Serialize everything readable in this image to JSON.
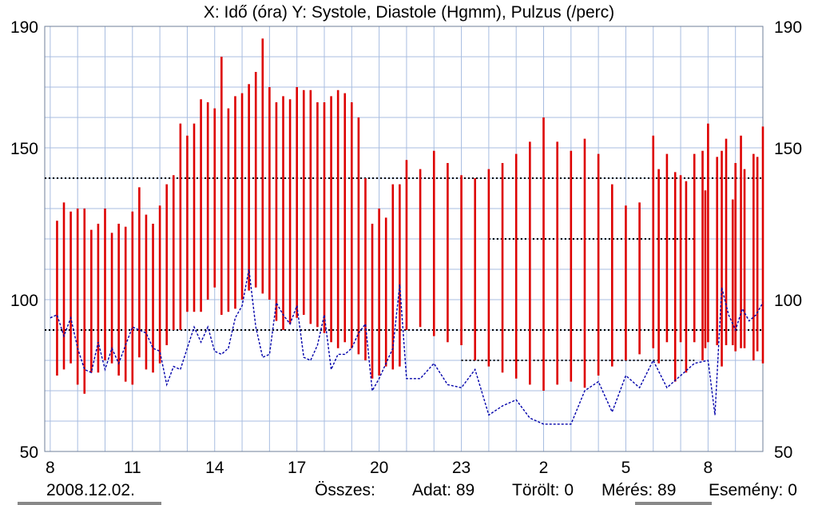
{
  "header": {
    "title": "X: Idő (óra)  Y: Systole, Diastole (Hgmm), Pulzus (/perc)"
  },
  "footer": {
    "date": "2008.12.02.",
    "total_label": "Összes:",
    "data_label": "Adat: 89",
    "deleted_label": "Törölt: 0",
    "measure_label": "Mérés: 89",
    "event_label": "Esemény: 0"
  },
  "colors": {
    "bars": "#dd0000",
    "pulse": "#0000aa",
    "grid": "#a8bde0",
    "thresholds": "#000000"
  },
  "chart_data": {
    "type": "bar",
    "title": "X: Idő (óra)  Y: Systole, Diastole (Hgmm), Pulzus (/perc)",
    "xlabel": "Idő (óra)",
    "ylabel": "Systole, Diastole (Hgmm), Pulzus (/perc)",
    "x_unit": "hours since 8:00 on 2008.12.02",
    "xlim": [
      -0.2,
      26
    ],
    "ylim": [
      50,
      190
    ],
    "x_ticks": [
      0,
      3,
      6,
      9,
      12,
      15,
      18,
      21,
      24
    ],
    "x_tick_labels": [
      "8",
      "11",
      "14",
      "17",
      "20",
      "23",
      "2",
      "5",
      "8"
    ],
    "y_ticks": [
      50,
      100,
      150,
      190
    ],
    "y_tick_labels": [
      "50",
      "100",
      "150",
      "190"
    ],
    "y_axis_both_sides": true,
    "grid": true,
    "series": [
      {
        "name": "Systole",
        "type": "bar-high",
        "color": "#dd0000",
        "x": [
          0.25,
          0.5,
          0.75,
          1.0,
          1.25,
          1.5,
          1.75,
          2.0,
          2.25,
          2.5,
          2.75,
          3.0,
          3.25,
          3.5,
          3.75,
          4.0,
          4.25,
          4.5,
          4.75,
          5.0,
          5.25,
          5.5,
          5.75,
          6.0,
          6.25,
          6.5,
          6.75,
          7.0,
          7.25,
          7.5,
          7.75,
          8.0,
          8.25,
          8.5,
          8.75,
          9.0,
          9.25,
          9.5,
          9.75,
          10.0,
          10.25,
          10.5,
          10.75,
          11.0,
          11.25,
          11.5,
          11.75,
          12.0,
          12.25,
          12.5,
          12.75,
          13.0,
          13.5,
          14.0,
          14.5,
          15.0,
          15.5,
          16.0,
          16.5,
          17.0,
          17.5,
          18.0,
          18.5,
          19.0,
          19.5,
          20.0,
          20.5,
          21.0,
          21.5,
          22.0,
          22.5,
          23.0,
          23.5,
          24.0,
          24.33,
          24.66,
          25.0,
          25.33,
          25.66,
          26.0,
          24.5,
          25.2,
          25.8,
          23.9,
          24.9,
          22.2,
          22.8,
          23.2,
          23.8
        ],
        "values": [
          126,
          132,
          129,
          130,
          130,
          123,
          125,
          130,
          122,
          125,
          124,
          129,
          137,
          128,
          125,
          131,
          138,
          141,
          158,
          154,
          158,
          166,
          165,
          163,
          180,
          163,
          167,
          168,
          171,
          175,
          186,
          170,
          165,
          167,
          166,
          170,
          169,
          169,
          165,
          165,
          167,
          169,
          168,
          165,
          160,
          140,
          125,
          130,
          127,
          138,
          138,
          146,
          143,
          149,
          145,
          141,
          140,
          143,
          145,
          148,
          152,
          160,
          152,
          149,
          153,
          148,
          138,
          131,
          132,
          154,
          148,
          141,
          148,
          158,
          147,
          153,
          145,
          143,
          148,
          157,
          149,
          154,
          147,
          136,
          133,
          143,
          142,
          139,
          149
        ]
      },
      {
        "name": "Diastole",
        "type": "bar-low",
        "color": "#dd0000",
        "x": [
          0.25,
          0.5,
          0.75,
          1.0,
          1.25,
          1.5,
          1.75,
          2.0,
          2.25,
          2.5,
          2.75,
          3.0,
          3.25,
          3.5,
          3.75,
          4.0,
          4.25,
          4.5,
          4.75,
          5.0,
          5.25,
          5.5,
          5.75,
          6.0,
          6.25,
          6.5,
          6.75,
          7.0,
          7.25,
          7.5,
          7.75,
          8.0,
          8.25,
          8.5,
          8.75,
          9.0,
          9.25,
          9.5,
          9.75,
          10.0,
          10.25,
          10.5,
          10.75,
          11.0,
          11.25,
          11.5,
          11.75,
          12.0,
          12.25,
          12.5,
          12.75,
          13.0,
          13.5,
          14.0,
          14.5,
          15.0,
          15.5,
          16.0,
          16.5,
          17.0,
          17.5,
          18.0,
          18.5,
          19.0,
          19.5,
          20.0,
          20.5,
          21.0,
          21.5,
          22.0,
          22.5,
          23.0,
          23.5,
          24.0,
          24.33,
          24.66,
          25.0,
          25.33,
          25.66,
          26.0,
          24.5,
          25.2,
          25.8,
          23.9,
          24.9,
          22.2,
          22.8,
          23.2,
          23.8
        ],
        "values": [
          75,
          77,
          79,
          72,
          69,
          76,
          76,
          80,
          79,
          75,
          73,
          72,
          81,
          77,
          76,
          79,
          85,
          90,
          90,
          96,
          96,
          96,
          100,
          104,
          95,
          96,
          97,
          100,
          103,
          104,
          102,
          100,
          93,
          90,
          92,
          94,
          95,
          92,
          91,
          89,
          86,
          84,
          86,
          84,
          82,
          80,
          74,
          75,
          78,
          77,
          78,
          90,
          91,
          88,
          86,
          85,
          80,
          78,
          76,
          74,
          72,
          70,
          72,
          73,
          71,
          75,
          78,
          80,
          82,
          84,
          86,
          86,
          86,
          86,
          85,
          85,
          83,
          84,
          80,
          79,
          78,
          84,
          83,
          84,
          85,
          79,
          73,
          76,
          80
        ]
      },
      {
        "name": "Pulzus",
        "type": "line",
        "color": "#0000aa",
        "x": [
          0.0,
          0.25,
          0.5,
          0.75,
          1.0,
          1.25,
          1.5,
          1.75,
          2.0,
          2.25,
          2.5,
          2.75,
          3.0,
          3.25,
          3.5,
          3.75,
          4.0,
          4.25,
          4.5,
          4.75,
          5.0,
          5.25,
          5.5,
          5.75,
          6.0,
          6.25,
          6.5,
          6.75,
          7.0,
          7.25,
          7.5,
          7.75,
          8.0,
          8.25,
          8.5,
          8.75,
          9.0,
          9.25,
          9.5,
          9.75,
          10.0,
          10.25,
          10.5,
          10.75,
          11.0,
          11.25,
          11.5,
          11.75,
          12.0,
          12.25,
          12.5,
          12.75,
          13.0,
          13.5,
          14.0,
          14.5,
          15.0,
          15.5,
          16.0,
          16.5,
          17.0,
          17.5,
          18.0,
          18.5,
          19.0,
          19.5,
          20.0,
          20.5,
          21.0,
          21.5,
          22.0,
          22.5,
          23.0,
          23.5,
          24.0,
          24.25,
          24.5,
          24.75,
          25.0,
          25.25,
          25.5,
          25.75,
          26.0
        ],
        "values": [
          94,
          95,
          88,
          94,
          84,
          77,
          76,
          86,
          77,
          84,
          79,
          85,
          91,
          90,
          89,
          84,
          83,
          72,
          78,
          77,
          84,
          91,
          86,
          91,
          83,
          82,
          84,
          94,
          98,
          110,
          91,
          81,
          82,
          99,
          95,
          92,
          98,
          81,
          80,
          85,
          95,
          77,
          82,
          82,
          84,
          89,
          92,
          70,
          74,
          79,
          84,
          105,
          74,
          74,
          79,
          72,
          71,
          77,
          62,
          65,
          67,
          61,
          59,
          59,
          59,
          70,
          73,
          63,
          75,
          71,
          80,
          71,
          75,
          79,
          80,
          62,
          104,
          95,
          90,
          97,
          93,
          95,
          99
        ]
      }
    ],
    "reference_lines": [
      {
        "y": 140,
        "x_range": [
          -0.2,
          26
        ]
      },
      {
        "y": 90,
        "x_range": [
          -0.2,
          26
        ]
      },
      {
        "y": 120,
        "x_range": [
          16.0,
          23.5
        ]
      },
      {
        "y": 80,
        "x_range": [
          15.0,
          23.5
        ]
      }
    ],
    "legend": "none"
  }
}
